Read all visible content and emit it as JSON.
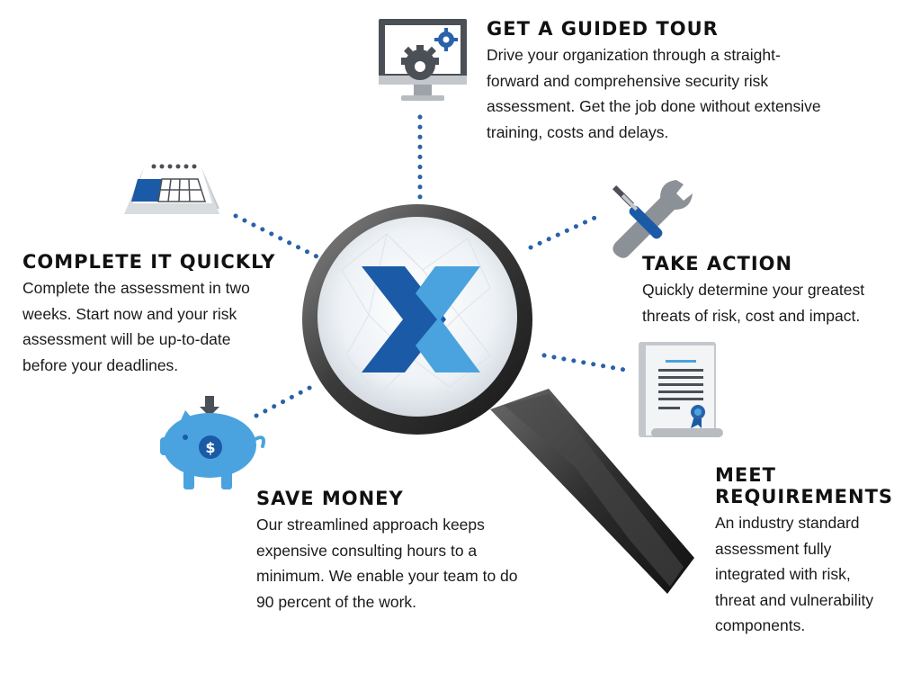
{
  "logo_letter": "X",
  "colors": {
    "blue_dark": "#1b5aa6",
    "blue_light": "#4aa3df",
    "gray_icon": "#9da3a8",
    "lens_bg": "#f2f5f8",
    "handle": "#333333",
    "dots": "#2962a8"
  },
  "icons": [
    "monitor-gear-icon",
    "calendar-icon",
    "wrench-screwdriver-icon",
    "certificate-icon",
    "piggy-bank-icon",
    "magnifying-glass-icon"
  ],
  "sections": {
    "tour": {
      "title": "GET A GUIDED TOUR",
      "body": "Drive your organization through a straight-\nforward and comprehensive security risk\nassessment. Get the job done without extensive\ntraining, costs and delays."
    },
    "quick": {
      "title": "COMPLETE IT QUICKLY",
      "body": "Complete the assessment in two\nweeks.  Start now and your risk\nassessment  will be up-to-date\nbefore your deadlines."
    },
    "action": {
      "title": "TAKE ACTION",
      "body": "Quickly determine your greatest\nthreats of risk, cost and impact."
    },
    "money": {
      "title": "SAVE MONEY",
      "body": "Our streamlined approach keeps\nexpensive consulting hours to a\nminimum.  We enable your team to do\n90 percent of the work."
    },
    "requirements": {
      "title": "MEET\nREQUIREMENTS",
      "body": "An industry standard\nassessment fully\nintegrated with risk,\nthreat and vulnerability\ncomponents."
    }
  }
}
